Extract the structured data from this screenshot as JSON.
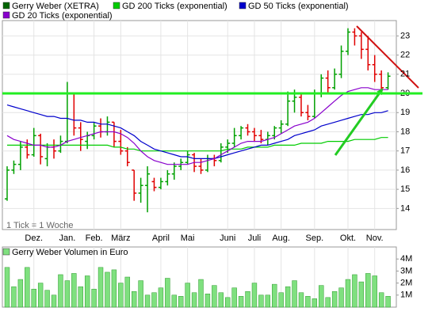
{
  "chart_data": [
    {
      "type": "ohlc",
      "annotation": "1 Tick = 1 Woche",
      "categories": [
        null,
        null,
        null,
        null,
        "Dez.",
        null,
        null,
        null,
        null,
        "Jan.",
        null,
        null,
        null,
        "Feb.",
        null,
        null,
        null,
        "März",
        null,
        null,
        null,
        null,
        null,
        "April",
        null,
        null,
        null,
        "Mai",
        null,
        null,
        null,
        null,
        null,
        "Juni",
        null,
        null,
        null,
        "Juli",
        null,
        null,
        null,
        "Aug.",
        null,
        null,
        null,
        null,
        "Sep.",
        null,
        null,
        null,
        null,
        "Okt.",
        null,
        null,
        null,
        "Nov.",
        null,
        null
      ],
      "ylim": [
        12.9,
        23.8
      ],
      "yticks": [
        14,
        15,
        16,
        17,
        18,
        19,
        20,
        21,
        22,
        23
      ],
      "grid": true,
      "hlines": [
        {
          "value": 20,
          "color": "#22ee22"
        }
      ],
      "series": [
        {
          "name": "Gerry Weber (XETRA)",
          "color": "#006400",
          "up_color": "#00a000",
          "down_color": "#e00000",
          "open": [
            14.5,
            16,
            16.3,
            17.2,
            16.8,
            17.8,
            16.6,
            17.2,
            17,
            17.5,
            20,
            18.2,
            17.5,
            17.8,
            18.3,
            18,
            18.5,
            17.5,
            17,
            16,
            14.8,
            15.2,
            15.4,
            15.1,
            15.4,
            15.8,
            16.2,
            16.4,
            16.8,
            16.2,
            16,
            16.6,
            16.5,
            17.2,
            17.4,
            17.8,
            18.2,
            18,
            17.8,
            17.6,
            17.8,
            18.2,
            18.4,
            19.6,
            19.8,
            19,
            18.8,
            20,
            20.8,
            20.3,
            21,
            22.2,
            23.2,
            23,
            22.3,
            21.5,
            21,
            20.3
          ],
          "high": [
            16.2,
            16.5,
            17.5,
            17.6,
            18.2,
            17.9,
            17.4,
            17.6,
            17.8,
            20.6,
            20,
            18.5,
            18,
            18.5,
            18.7,
            18.8,
            18.5,
            18.1,
            17.2,
            16,
            15.6,
            16.2,
            15.6,
            15.6,
            16,
            16.4,
            16.6,
            17,
            16.9,
            16.6,
            16.8,
            16.8,
            17.4,
            17.6,
            18.2,
            18.3,
            18.4,
            18.2,
            18.1,
            18,
            18.3,
            18.6,
            20.1,
            20.2,
            20,
            19.4,
            20.2,
            21,
            21.2,
            21.3,
            22.5,
            23.4,
            23.4,
            23.2,
            23,
            22,
            21.2,
            21.1
          ],
          "low": [
            14.4,
            15.8,
            16,
            16.6,
            16.7,
            16.3,
            16.2,
            16.6,
            16.9,
            17.4,
            17.8,
            17,
            17.1,
            17.6,
            17.7,
            17.8,
            17.2,
            16.8,
            16.2,
            14.4,
            14.3,
            13.8,
            14.9,
            15,
            15.2,
            15.5,
            16,
            16.3,
            15.9,
            15.8,
            15.9,
            16.2,
            16.4,
            16.9,
            17.2,
            17.6,
            17.8,
            17.5,
            17.4,
            17.3,
            17.6,
            17.9,
            18.3,
            19,
            18.8,
            18.6,
            18.7,
            19.8,
            20,
            20.2,
            20.8,
            22,
            22.5,
            21.8,
            21.2,
            20.6,
            20.1,
            20.2
          ],
          "close": [
            16,
            16.3,
            17.2,
            16.8,
            17.8,
            16.7,
            17.2,
            17,
            17.5,
            20,
            18.2,
            17.6,
            17.8,
            18.3,
            18,
            18.5,
            17.5,
            17,
            16.4,
            14.8,
            15.2,
            15.8,
            15.1,
            15.4,
            15.8,
            16.2,
            16.4,
            16.8,
            16.2,
            16,
            16.6,
            16.5,
            17.2,
            17.4,
            17.8,
            18.2,
            18,
            17.8,
            17.6,
            17.8,
            18.2,
            18.4,
            19.6,
            19.8,
            19,
            18.8,
            20,
            20.8,
            20.3,
            21,
            22.2,
            23.2,
            23,
            22.3,
            21.5,
            21,
            20.3,
            20.9
          ]
        },
        {
          "name": "GD 200 Ticks (exponential)",
          "type": "line",
          "color": "#00cc00",
          "values": [
            17.3,
            17.3,
            17.3,
            17.3,
            17.3,
            17.3,
            17.3,
            17.3,
            17.3,
            17.3,
            17.3,
            17.3,
            17.3,
            17.3,
            17.3,
            17.3,
            17.2,
            17.2,
            17.1,
            17.1,
            17,
            17,
            17,
            17,
            17,
            17,
            17,
            17,
            17,
            17,
            17,
            17,
            17,
            17.1,
            17.1,
            17.1,
            17.2,
            17.2,
            17.2,
            17.2,
            17.3,
            17.3,
            17.3,
            17.3,
            17.4,
            17.4,
            17.4,
            17.4,
            17.5,
            17.5,
            17.5,
            17.5,
            17.6,
            17.6,
            17.6,
            17.6,
            17.7,
            17.7
          ]
        },
        {
          "name": "GD 50 Ticks (exponential)",
          "type": "line",
          "color": "#0000cc",
          "values": [
            19.4,
            19.3,
            19.2,
            19.1,
            19,
            18.9,
            18.8,
            18.8,
            18.7,
            18.7,
            18.6,
            18.6,
            18.5,
            18.5,
            18.4,
            18.4,
            18.3,
            18.2,
            18,
            17.8,
            17.5,
            17.3,
            17.1,
            17,
            16.9,
            16.8,
            16.7,
            16.7,
            16.6,
            16.6,
            16.6,
            16.6,
            16.7,
            16.8,
            16.9,
            17,
            17.1,
            17.2,
            17.3,
            17.3,
            17.4,
            17.5,
            17.6,
            17.8,
            17.9,
            18,
            18.1,
            18.3,
            18.4,
            18.5,
            18.6,
            18.7,
            18.8,
            18.9,
            18.9,
            19,
            19,
            19.1
          ]
        },
        {
          "name": "GD 20 Ticks (exponential)",
          "type": "line",
          "color": "#8800cc",
          "values": [
            17.8,
            17.6,
            17.5,
            17.4,
            17.3,
            17.3,
            17.2,
            17.2,
            17.3,
            17.5,
            17.6,
            17.7,
            17.8,
            17.9,
            18,
            18,
            18,
            17.9,
            17.7,
            17.4,
            17,
            16.7,
            16.5,
            16.4,
            16.3,
            16.3,
            16.3,
            16.3,
            16.4,
            16.4,
            16.5,
            16.6,
            16.8,
            17,
            17.2,
            17.4,
            17.5,
            17.5,
            17.5,
            17.6,
            17.7,
            17.9,
            18.1,
            18.3,
            18.4,
            18.5,
            18.7,
            19,
            19.3,
            19.6,
            19.9,
            20.1,
            20.2,
            20.3,
            20.3,
            20.2,
            20.2,
            20.2
          ]
        }
      ]
    },
    {
      "type": "bar",
      "ylim": [
        0,
        5000000
      ],
      "yticks": [
        {
          "value": 1000000,
          "label": "1M"
        },
        {
          "value": 2000000,
          "label": "2M"
        },
        {
          "value": 3000000,
          "label": "3M"
        },
        {
          "value": 4000000,
          "label": "4M"
        }
      ],
      "series": [
        {
          "name": "Gerry Weber Volumen in Euro",
          "color": "#7fe07f",
          "edge": "#2a9a2a",
          "values": [
            3300000,
            1700000,
            2300000,
            3300000,
            1500000,
            2000000,
            1400000,
            1000000,
            2700000,
            2200000,
            2800000,
            1700000,
            2600000,
            1500000,
            3300000,
            2900000,
            3100000,
            2000000,
            2500000,
            1300000,
            2200000,
            1000000,
            1200000,
            1600000,
            2400000,
            1000000,
            900000,
            2000000,
            1200000,
            2300000,
            1100000,
            1800000,
            1200000,
            800000,
            1600000,
            900000,
            1300000,
            2000000,
            1000000,
            1000000,
            1900000,
            1200000,
            1700000,
            2200000,
            1200000,
            900000,
            700000,
            1800000,
            800000,
            1300000,
            1600000,
            2300000,
            2700000,
            2100000,
            2800000,
            2600000,
            1200000,
            900000
          ]
        }
      ]
    }
  ]
}
